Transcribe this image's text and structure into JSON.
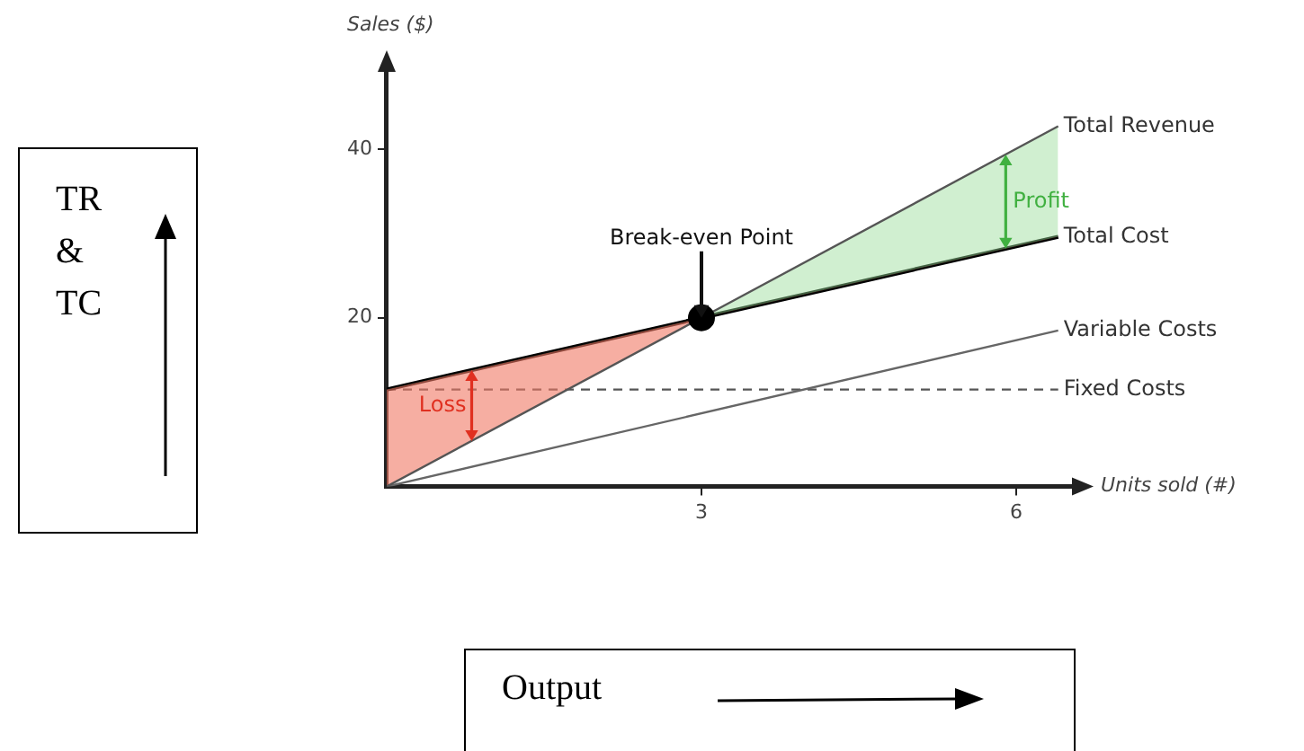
{
  "chart_data": {
    "type": "line",
    "ylabel": "Sales ($)",
    "xlabel": "Units sold (#)",
    "xlim": [
      0,
      6.6
    ],
    "ylim": [
      0,
      50
    ],
    "xticks": [
      3,
      6
    ],
    "yticks": [
      20,
      40
    ],
    "grid": false,
    "legend": false,
    "series": [
      {
        "name": "Total Revenue",
        "color": "#555555",
        "x": [
          0,
          3,
          6.4
        ],
        "values": [
          0,
          20,
          42.7
        ]
      },
      {
        "name": "Total Cost",
        "color": "#000000",
        "x": [
          0,
          3,
          6.4
        ],
        "values": [
          11.5,
          20,
          29.6
        ]
      },
      {
        "name": "Variable Costs",
        "color": "#666666",
        "x": [
          0,
          6.4
        ],
        "values": [
          0,
          18.5
        ]
      },
      {
        "name": "Fixed Costs",
        "color": "#555555",
        "x": [
          0,
          6.4
        ],
        "values": [
          11.5,
          11.5
        ],
        "line_style": "dashed"
      },
      {
        "type": "scatter",
        "color": "#000000",
        "x": [
          3
        ],
        "values": [
          20
        ],
        "marker": "circle"
      }
    ],
    "annotations": [
      {
        "text": "Break-even Point",
        "x": 3,
        "y": 20
      },
      "Loss",
      {
        "text": "Profit",
        "x": 5.9,
        "y": 39.3
      },
      "TR & TC",
      "Output"
    ]
  }
}
